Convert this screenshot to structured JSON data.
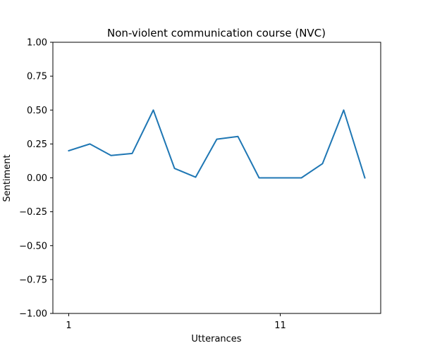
{
  "chart_data": {
    "type": "line",
    "title": "Non-violent communication course (NVC)",
    "xlabel": "Utterances",
    "ylabel": "Sentiment",
    "x": [
      1,
      2,
      3,
      4,
      5,
      6,
      7,
      8,
      9,
      10,
      11,
      12,
      13,
      14,
      15
    ],
    "series": [
      {
        "values": [
          0.2,
          0.25,
          0.165,
          0.18,
          0.5,
          0.07,
          0.005,
          0.285,
          0.305,
          0.0,
          0.0,
          0.0,
          0.105,
          0.5,
          0.0
        ]
      }
    ],
    "xlim": [
      0.25,
      15.75
    ],
    "ylim": [
      -1.0,
      1.0
    ],
    "x_ticks": [
      1,
      11
    ],
    "x_tick_labels": [
      "1",
      "11"
    ],
    "y_ticks": [
      -1.0,
      -0.75,
      -0.5,
      -0.25,
      0.0,
      0.25,
      0.5,
      0.75,
      1.0
    ],
    "y_tick_labels": [
      "−1.00",
      "−0.75",
      "−0.50",
      "−0.25",
      "0.00",
      "0.25",
      "0.50",
      "0.75",
      "1.00"
    ],
    "line_color": "#1f77b4",
    "grid": false,
    "legend": "none"
  }
}
